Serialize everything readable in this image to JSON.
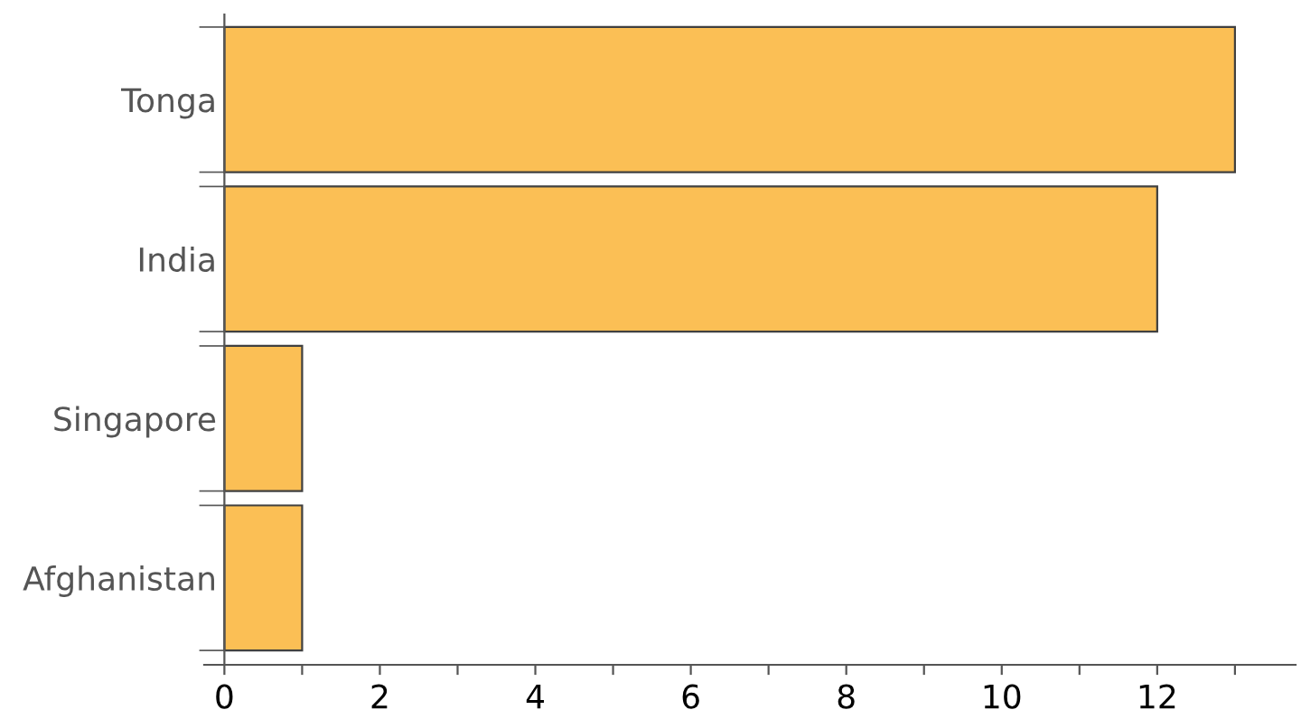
{
  "chart_data": {
    "type": "bar",
    "orientation": "horizontal",
    "categories": [
      "Tonga",
      "India",
      "Singapore",
      "Afghanistan"
    ],
    "values": [
      13,
      12,
      1,
      1
    ],
    "color": "#fbbf55",
    "xlim": [
      -0.26,
      13.78
    ],
    "xticks": [
      0,
      {
        "value": 1,
        "label": null
      },
      2,
      {
        "value": 3,
        "label": null
      },
      4,
      {
        "value": 5,
        "label": null
      },
      6,
      {
        "value": 7,
        "label": null
      },
      8,
      {
        "value": 9,
        "label": null
      },
      10,
      {
        "value": 11,
        "label": null
      },
      12,
      {
        "value": 13,
        "label": null
      }
    ],
    "grid": false,
    "legend": false
  }
}
